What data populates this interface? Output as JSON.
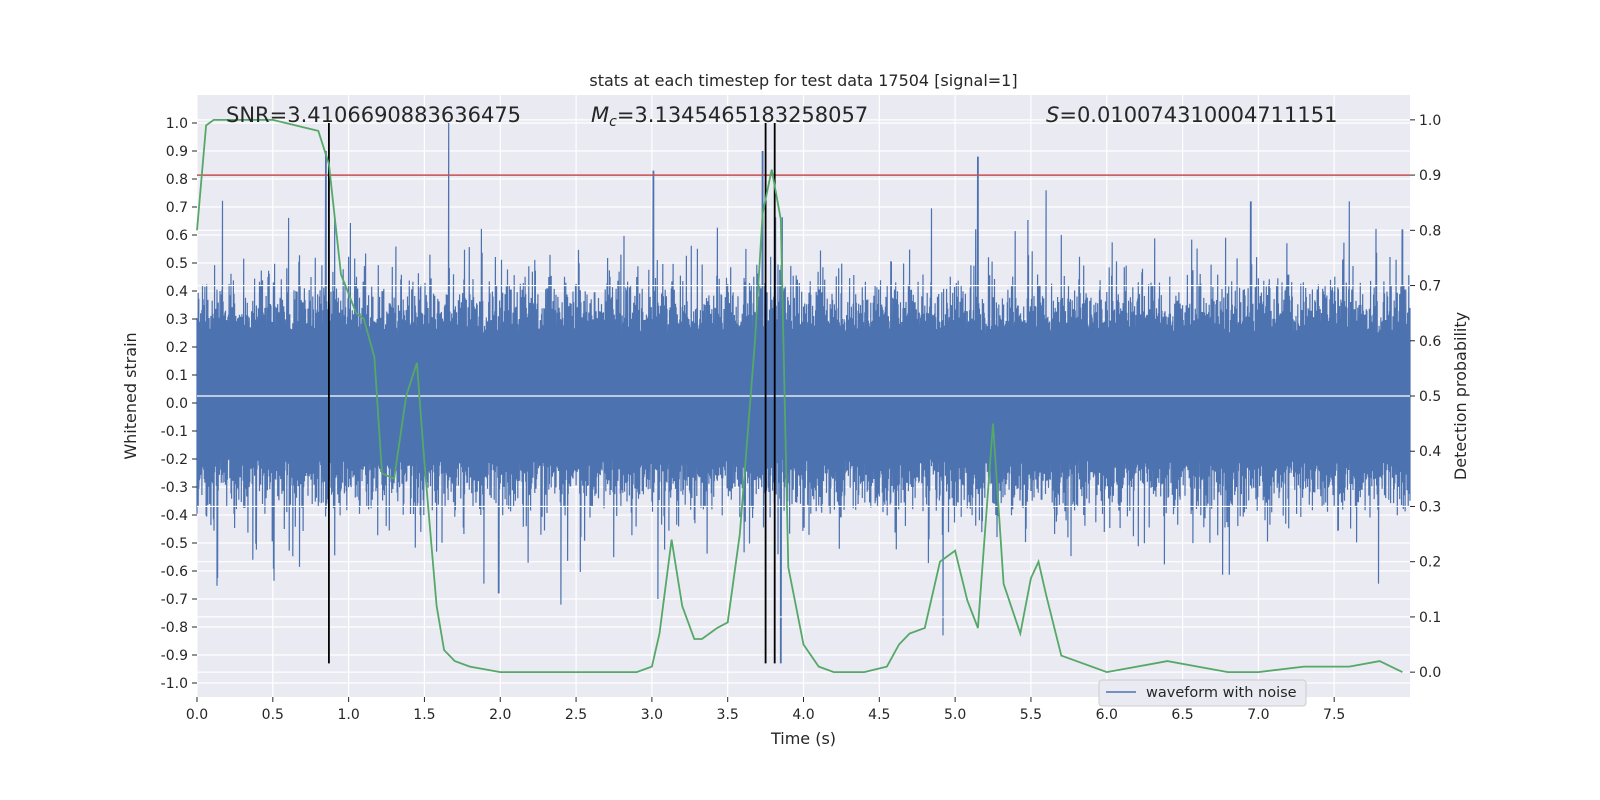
{
  "chart_data": {
    "type": "line",
    "title": "stats at each timestep for test data 17504 [signal=1]",
    "xlabel": "Time (s)",
    "ylabel": "Whitened strain",
    "y2label": "Detection probability",
    "xlim": [
      0,
      8.0
    ],
    "ylim": [
      -1.05,
      1.1
    ],
    "y2lim": [
      -0.045,
      1.045
    ],
    "xticks": [
      "0.0",
      "0.5",
      "1.0",
      "1.5",
      "2.0",
      "2.5",
      "3.0",
      "3.5",
      "4.0",
      "4.5",
      "5.0",
      "5.5",
      "6.0",
      "6.5",
      "7.0",
      "7.5"
    ],
    "yticks": [
      "-1.0",
      "-0.9",
      "-0.8",
      "-0.7",
      "-0.6",
      "-0.5",
      "-0.4",
      "-0.3",
      "-0.2",
      "-0.1",
      "0.0",
      "0.1",
      "0.2",
      "0.3",
      "0.4",
      "0.5",
      "0.6",
      "0.7",
      "0.8",
      "0.9",
      "1.0"
    ],
    "y2ticks": [
      "0.0",
      "0.1",
      "0.2",
      "0.3",
      "0.4",
      "0.5",
      "0.6",
      "0.7",
      "0.8",
      "0.9",
      "1.0"
    ],
    "annotations": {
      "snr": "SNR=3.4106690883636475",
      "mc_symbol": "M",
      "mc_sub": "c",
      "mc_value": "=3.1345465183258057",
      "s_symbol": "S",
      "s_value": "=0.010074310004711151"
    },
    "legend": {
      "label": "waveform with noise",
      "location": "lower-right"
    },
    "threshold": {
      "y2": 0.9,
      "color": "#c44e52"
    },
    "vlines": [
      0.87,
      3.75,
      3.81
    ],
    "waveform": {
      "name": "waveform with noise",
      "color": "#4c72b0",
      "dense_envelope": [
        -0.2,
        0.25
      ],
      "peaks_positive": [
        [
          1.66,
          1.0
        ],
        [
          3.01,
          0.83
        ],
        [
          5.15,
          0.88
        ],
        [
          3.73,
          0.9
        ],
        [
          0.85,
          0.9
        ],
        [
          7.6,
          0.72
        ],
        [
          7.95,
          0.62
        ],
        [
          6.95,
          0.72
        ],
        [
          5.6,
          0.76
        ]
      ],
      "peaks_negative": [
        [
          3.85,
          -0.93
        ],
        [
          4.92,
          -0.83
        ],
        [
          2.4,
          -0.72
        ],
        [
          3.04,
          -0.7
        ],
        [
          1.99,
          -0.68
        ]
      ]
    },
    "detection_probability": {
      "color": "#55a868",
      "x": [
        0.0,
        0.06,
        0.11,
        0.2,
        0.5,
        0.65,
        0.8,
        0.87,
        0.95,
        1.05,
        1.1,
        1.17,
        1.22,
        1.3,
        1.38,
        1.45,
        1.5,
        1.58,
        1.63,
        1.7,
        1.8,
        2.0,
        2.3,
        2.6,
        2.9,
        3.0,
        3.05,
        3.13,
        3.2,
        3.28,
        3.33,
        3.43,
        3.5,
        3.58,
        3.68,
        3.73,
        3.79,
        3.85,
        3.9,
        4.0,
        4.1,
        4.2,
        4.4,
        4.55,
        4.63,
        4.7,
        4.8,
        4.9,
        5.0,
        5.08,
        5.15,
        5.25,
        5.32,
        5.43,
        5.5,
        5.55,
        5.6,
        5.7,
        6.0,
        6.2,
        6.4,
        6.6,
        6.8,
        7.0,
        7.3,
        7.6,
        7.8,
        7.95
      ],
      "y": [
        0.8,
        0.99,
        1.0,
        1.0,
        1.0,
        0.99,
        0.98,
        0.92,
        0.72,
        0.65,
        0.64,
        0.57,
        0.36,
        0.35,
        0.5,
        0.56,
        0.38,
        0.12,
        0.04,
        0.02,
        0.01,
        0.0,
        0.0,
        0.0,
        0.0,
        0.01,
        0.07,
        0.24,
        0.12,
        0.06,
        0.06,
        0.08,
        0.09,
        0.25,
        0.6,
        0.83,
        0.91,
        0.82,
        0.19,
        0.05,
        0.01,
        0.0,
        0.0,
        0.01,
        0.05,
        0.07,
        0.08,
        0.2,
        0.22,
        0.13,
        0.08,
        0.45,
        0.16,
        0.07,
        0.17,
        0.2,
        0.14,
        0.03,
        0.0,
        0.01,
        0.02,
        0.01,
        0.0,
        0.0,
        0.01,
        0.01,
        0.02,
        0.0
      ]
    }
  }
}
